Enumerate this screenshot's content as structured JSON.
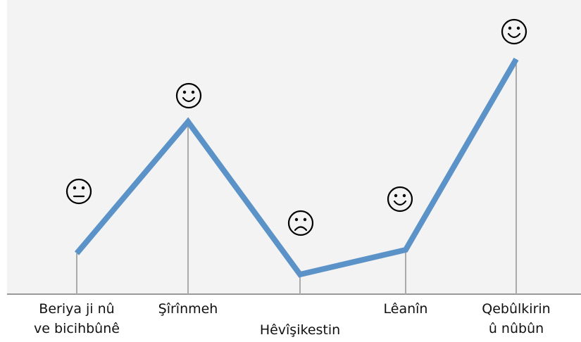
{
  "stages": [
    {
      "label": [
        "Beriya ji nû",
        "ve bicihbûnê"
      ]
    },
    {
      "label": [
        "Şîrînmeh"
      ]
    },
    {
      "label": [
        "Hêvîşikestin"
      ]
    },
    {
      "label": [
        "Lêanîn"
      ]
    },
    {
      "label": [
        "Qebûlkirin",
        "û nûbûn"
      ]
    }
  ]
}
